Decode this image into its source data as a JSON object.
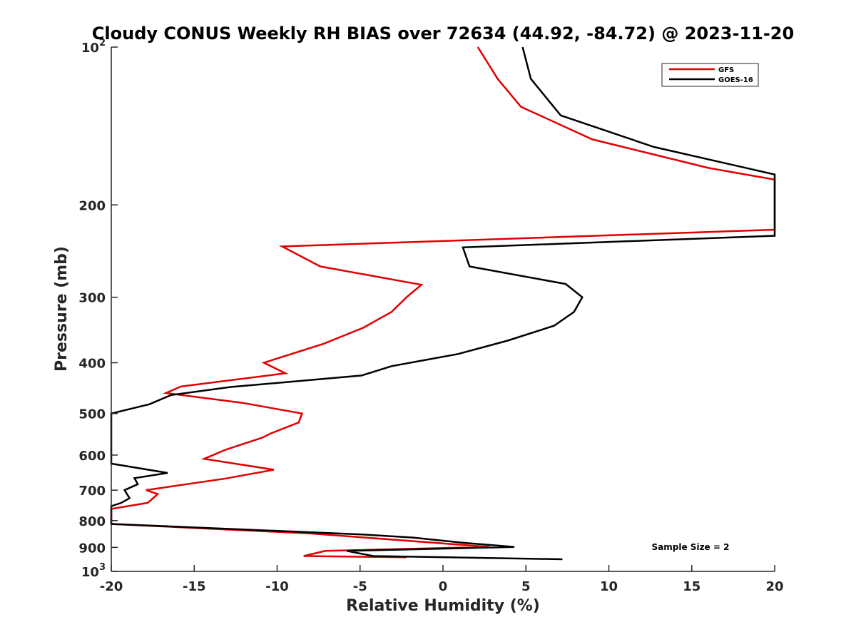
{
  "chart_data": {
    "type": "line",
    "title": "Cloudy CONUS Weekly RH BIAS over 72634 (44.92, -84.72) @ 2023-11-20",
    "xlabel": "Relative Humidity (%)",
    "ylabel": "Pressure (mb)",
    "xlim": [
      -20,
      20
    ],
    "ylim": [
      1000,
      100
    ],
    "y_scale": "log",
    "x_ticks": [
      -20,
      -15,
      -10,
      -5,
      0,
      5,
      10,
      15,
      20
    ],
    "x_tick_labels": [
      "-20",
      "-15",
      "-10",
      "-5",
      "0",
      "5",
      "10",
      "15",
      "20"
    ],
    "y_ticks": [
      100,
      200,
      300,
      400,
      500,
      600,
      700,
      800,
      900,
      1000
    ],
    "y_tick_labels": [
      "10^2",
      "200",
      "300",
      "400",
      "500",
      "600",
      "700",
      "800",
      "900",
      "10^3"
    ],
    "grid": false,
    "legend_position": "top-right",
    "annotation": "Sample Size = 2",
    "series": [
      {
        "name": "GFS",
        "color": "#e00000",
        "points": [
          [
            2.1,
            100
          ],
          [
            3.3,
            115
          ],
          [
            4.7,
            130
          ],
          [
            9.0,
            150
          ],
          [
            16.0,
            170
          ],
          [
            20.0,
            179
          ],
          [
            20.0,
            223
          ],
          [
            -9.7,
            240
          ],
          [
            -7.4,
            262
          ],
          [
            -1.3,
            284
          ],
          [
            -2.2,
            300
          ],
          [
            -3.1,
            320
          ],
          [
            -4.8,
            343
          ],
          [
            -7.2,
            368
          ],
          [
            -10.8,
            400
          ],
          [
            -9.5,
            419
          ],
          [
            -15.8,
            444
          ],
          [
            -16.7,
            457
          ],
          [
            -12.1,
            477
          ],
          [
            -8.5,
            500
          ],
          [
            -8.7,
            520
          ],
          [
            -10.4,
            546
          ],
          [
            -10.9,
            556
          ],
          [
            -13.1,
            586
          ],
          [
            -14.4,
            610
          ],
          [
            -10.2,
            640
          ],
          [
            -13.1,
            665
          ],
          [
            -17.9,
            700
          ],
          [
            -17.2,
            712
          ],
          [
            -17.8,
            740
          ],
          [
            -20.0,
            760
          ],
          [
            -20.0,
            812
          ],
          [
            -7.9,
            847
          ],
          [
            2.8,
            898
          ],
          [
            -7.1,
            914
          ],
          [
            -8.4,
            935
          ],
          [
            -2.2,
            940
          ]
        ]
      },
      {
        "name": "GOES-16",
        "color": "#000000",
        "points": [
          [
            4.8,
            100
          ],
          [
            5.3,
            115
          ],
          [
            7.1,
            135
          ],
          [
            12.7,
            155
          ],
          [
            20.0,
            175
          ],
          [
            20.0,
            229
          ],
          [
            1.2,
            241
          ],
          [
            1.6,
            262
          ],
          [
            7.4,
            283
          ],
          [
            8.4,
            300
          ],
          [
            7.9,
            320
          ],
          [
            6.7,
            340
          ],
          [
            3.9,
            363
          ],
          [
            0.9,
            385
          ],
          [
            -3.1,
            406
          ],
          [
            -4.9,
            423
          ],
          [
            -12.8,
            445
          ],
          [
            -16.4,
            461
          ],
          [
            -17.7,
            480
          ],
          [
            -20.0,
            500
          ],
          [
            -20.0,
            623
          ],
          [
            -16.6,
            649
          ],
          [
            -18.6,
            664
          ],
          [
            -18.4,
            682
          ],
          [
            -19.2,
            700
          ],
          [
            -18.9,
            725
          ],
          [
            -19.4,
            740
          ],
          [
            -20.0,
            751
          ],
          [
            -20.0,
            812
          ],
          [
            -5.0,
            850
          ],
          [
            -1.8,
            862
          ],
          [
            1.2,
            882
          ],
          [
            4.3,
            898
          ],
          [
            -5.8,
            914
          ],
          [
            -4.2,
            935
          ],
          [
            7.2,
            948
          ]
        ]
      }
    ]
  }
}
